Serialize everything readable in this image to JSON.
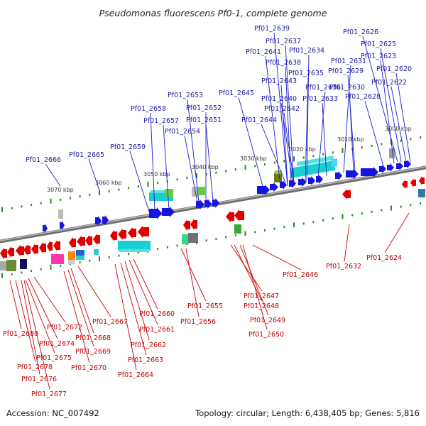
{
  "title": "Pseudomonas fluorescens Pf0-1, complete genome",
  "footer": {
    "accession": "Accession: NC_007492",
    "topology": "Topology: circular; Length: 6,438,405 bp; Genes: 5,816"
  },
  "colors": {
    "forward_gene": "#1515e0",
    "reverse_gene": "#e00000",
    "backbone": "#8a8a8a",
    "tick": "#1f8a1f",
    "feature_cyan": "#19d0d0",
    "feature_green": "#33aa33",
    "feature_olive": "#6a7a10",
    "feature_gray": "#707070",
    "feature_magenta": "#ff33aa",
    "feature_orange": "#ff8800",
    "feature_navy": "#101060",
    "forward_label": "#1a1aa0",
    "reverse_label": "#c00000"
  },
  "kbp_labels": [
    "3000 kbp",
    "3010 kbp",
    "3020 kbp",
    "3030 kbp",
    "3040 kbp",
    "3050 kbp",
    "3060 kbp",
    "3070 kbp"
  ],
  "forward_labels": [
    "Pf01_2639",
    "Pf01_2637",
    "Pf01_2641",
    "Pf01_2634",
    "Pf01_2638",
    "Pf01_2631",
    "Pf01_2635",
    "Pf01_2626",
    "Pf01_2625",
    "Pf01_2623",
    "Pf01_2620",
    "Pf01_2629",
    "Pf01_2622",
    "Pf01_2643",
    "Pf01_2636",
    "Pf01_2630",
    "Pf01_2645",
    "Pf01_2640",
    "Pf01_2633",
    "Pf01_2628",
    "Pf01_2642",
    "Pf01_2653",
    "Pf01_2644",
    "Pf01_2652",
    "Pf01_2658",
    "Pf01_2657",
    "Pf01_2651",
    "Pf01_2654",
    "Pf01_2659",
    "Pf01_2665",
    "Pf01_2666"
  ],
  "reverse_labels": [
    "Pf01_2624",
    "Pf01_2632",
    "Pf01_2646",
    "Pf01_2647",
    "Pf01_2648",
    "Pf01_2655",
    "Pf01_2649",
    "Pf01_2656",
    "Pf01_2650",
    "Pf01_2660",
    "Pf01_2667",
    "Pf01_2661",
    "Pf01_2672",
    "Pf01_2668",
    "Pf01_2680",
    "Pf01_2674",
    "Pf01_2662",
    "Pf01_2669",
    "Pf01_2675",
    "Pf01_2663",
    "Pf01_2678",
    "Pf01_2670",
    "Pf01_2664",
    "Pf01_2676",
    "Pf01_2677"
  ]
}
